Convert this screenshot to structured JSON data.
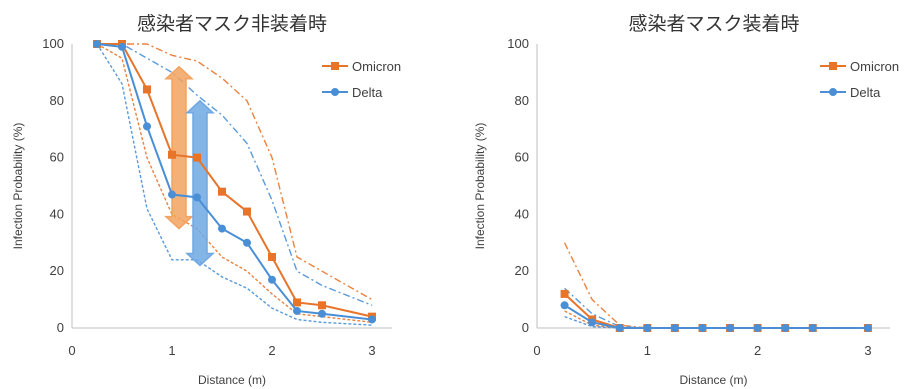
{
  "colors": {
    "omicron": "#E8742A",
    "delta": "#4A8FD6",
    "omicron_band": "#F2A35F",
    "delta_band": "#6FA8E3",
    "axis": "#bfbfbf",
    "text": "#404040"
  },
  "chart_data": [
    {
      "type": "line",
      "title": "感染者マスク非装着時",
      "xlabel": "Distance (m)",
      "ylabel": "Infection Probability (%)",
      "xlim": [
        0,
        3.2
      ],
      "ylim": [
        0,
        100
      ],
      "xticks": [
        0,
        1,
        2,
        3
      ],
      "yticks": [
        0,
        20,
        40,
        60,
        80,
        100
      ],
      "legend": "top-right",
      "series": [
        {
          "name": "Omicron",
          "color_key": "omicron",
          "x": [
            0.25,
            0.5,
            0.75,
            1.0,
            1.25,
            1.5,
            1.75,
            2.0,
            2.25,
            2.5,
            3.0
          ],
          "y": [
            100,
            100,
            84,
            61,
            60,
            48,
            41,
            25,
            9,
            8,
            4
          ],
          "upper": [
            100,
            100,
            100,
            96,
            94,
            88,
            80,
            60,
            25,
            20,
            10
          ],
          "lower": [
            100,
            95,
            60,
            40,
            35,
            25,
            20,
            12,
            5,
            4,
            2
          ]
        },
        {
          "name": "Delta",
          "color_key": "delta",
          "x": [
            0.25,
            0.5,
            0.75,
            1.0,
            1.25,
            1.5,
            1.75,
            2.0,
            2.25,
            2.5,
            3.0
          ],
          "y": [
            100,
            99,
            71,
            47,
            46,
            35,
            30,
            17,
            6,
            5,
            3
          ],
          "upper": [
            100,
            100,
            95,
            90,
            82,
            75,
            65,
            45,
            20,
            15,
            8
          ],
          "lower": [
            100,
            86,
            42,
            24,
            24,
            18,
            14,
            7,
            3,
            2,
            1
          ]
        }
      ],
      "arrows": [
        {
          "color_key": "omicron_band",
          "x": 1.07,
          "from": 35,
          "to": 92
        },
        {
          "color_key": "delta_band",
          "x": 1.28,
          "from": 22,
          "to": 80
        }
      ]
    },
    {
      "type": "line",
      "title": "感染者マスク装着時",
      "xlabel": "Distance (m)",
      "ylabel": "Infection Probability (%)",
      "xlim": [
        0,
        3.2
      ],
      "ylim": [
        0,
        100
      ],
      "xticks": [
        0,
        1,
        2,
        3
      ],
      "yticks": [
        0,
        20,
        40,
        60,
        80,
        100
      ],
      "legend": "top-right",
      "series": [
        {
          "name": "Omicron",
          "color_key": "omicron",
          "x": [
            0.25,
            0.5,
            0.75,
            1.0,
            1.25,
            1.5,
            1.75,
            2.0,
            2.25,
            2.5,
            3.0
          ],
          "y": [
            12,
            3,
            0,
            0,
            0,
            0,
            0,
            0,
            0,
            0,
            0
          ],
          "upper": [
            30,
            10,
            1,
            0,
            0,
            0,
            0,
            0,
            0,
            0,
            0
          ],
          "lower": [
            6,
            1,
            0,
            0,
            0,
            0,
            0,
            0,
            0,
            0,
            0
          ]
        },
        {
          "name": "Delta",
          "color_key": "delta",
          "x": [
            0.25,
            0.5,
            0.75,
            1.0,
            1.25,
            1.5,
            1.75,
            2.0,
            2.25,
            2.5,
            3.0
          ],
          "y": [
            8,
            2,
            0,
            0,
            0,
            0,
            0,
            0,
            0,
            0,
            0
          ],
          "upper": [
            14,
            5,
            0.5,
            0,
            0,
            0,
            0,
            0,
            0,
            0,
            0
          ],
          "lower": [
            4,
            0.5,
            0,
            0,
            0,
            0,
            0,
            0,
            0,
            0,
            0
          ]
        }
      ],
      "arrows": []
    }
  ]
}
